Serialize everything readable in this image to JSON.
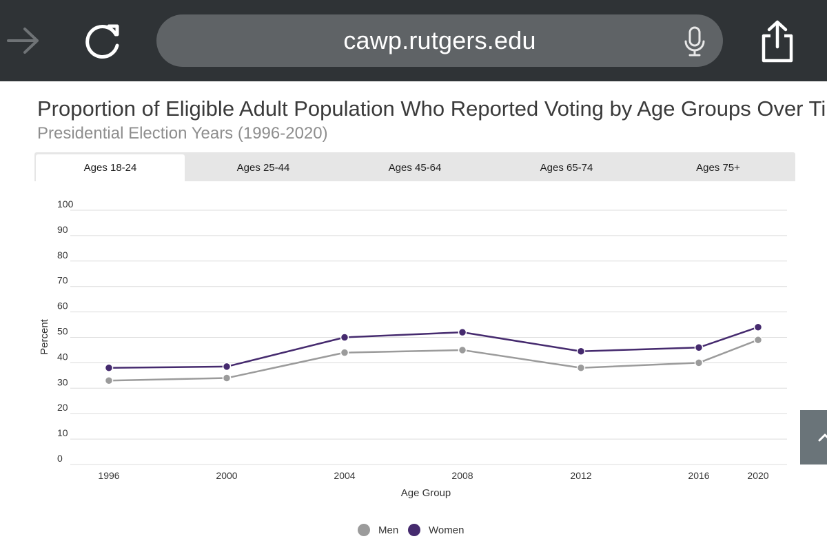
{
  "browser": {
    "url": "cawp.rutgers.edu",
    "icons": [
      "arrow-right-icon",
      "reload-icon",
      "microphone-icon",
      "share-icon",
      "chevron-up-icon"
    ]
  },
  "chart_header": {
    "title": "Proportion of Eligible Adult Population Who Reported Voting by Age Groups Over Time",
    "subtitle": "Presidential Election Years (1996-2020)"
  },
  "tabs": [
    {
      "label": "Ages 18-24",
      "active": true
    },
    {
      "label": "Ages 25-44",
      "active": false
    },
    {
      "label": "Ages 45-64",
      "active": false
    },
    {
      "label": "Ages 65-74",
      "active": false
    },
    {
      "label": "Ages 75+",
      "active": false
    }
  ],
  "colors": {
    "men": "#9b9b9b",
    "women": "#452a6e",
    "grid": "#dcdcdc"
  },
  "chart_data": {
    "type": "line",
    "title": "Proportion of Eligible Adult Population Who Reported Voting by Age Groups Over Time",
    "subtitle": "Presidential Election Years (1996-2020)",
    "xlabel": "Age Group",
    "ylabel": "Percent",
    "categories": [
      "1996",
      "2000",
      "2004",
      "2008",
      "2012",
      "2016",
      "2020"
    ],
    "ylim": [
      0,
      100
    ],
    "yticks": [
      "0",
      "10",
      "20",
      "30",
      "40",
      "50",
      "60",
      "70",
      "80",
      "90",
      "100"
    ],
    "grid": true,
    "legend_position": "bottom-center",
    "series": [
      {
        "name": "Men",
        "values": [
          33,
          34,
          44,
          45,
          38,
          40,
          49
        ]
      },
      {
        "name": "Women",
        "values": [
          38,
          38.5,
          50,
          52,
          44.5,
          46,
          54
        ]
      }
    ]
  }
}
